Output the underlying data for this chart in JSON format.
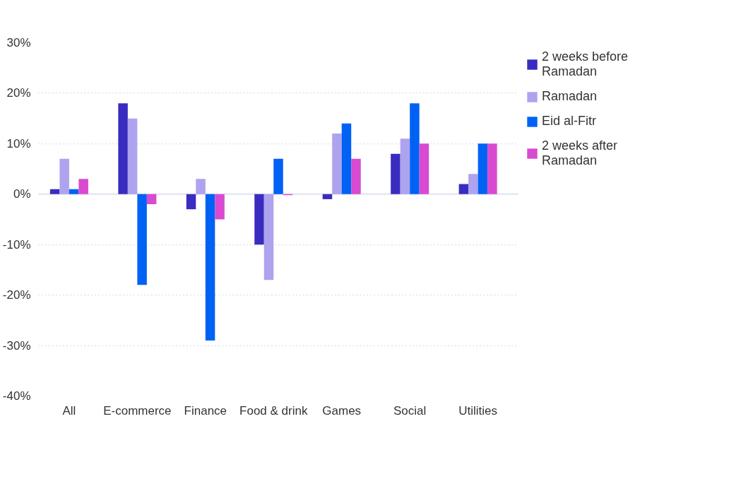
{
  "chart_data": {
    "type": "bar",
    "categories": [
      "All",
      "E-commerce",
      "Finance",
      "Food & drink",
      "Games",
      "Social",
      "Utilities"
    ],
    "series": [
      {
        "name": "2 weeks before Ramadan",
        "color": "#3a2cc0",
        "values": [
          1,
          18,
          -3,
          -10,
          -1,
          8,
          2
        ]
      },
      {
        "name": "Ramadan",
        "color": "#ada3ee",
        "values": [
          7,
          15,
          3,
          -17,
          12,
          11,
          4
        ]
      },
      {
        "name": "Eid al-Fitr",
        "color": "#0062f5",
        "values": [
          1,
          -18,
          -29,
          7,
          14,
          18,
          10
        ]
      },
      {
        "name": "2 weeks after Ramadan",
        "color": "#d84ad0",
        "values": [
          3,
          -2,
          -5,
          -0.2,
          7,
          10,
          10
        ]
      }
    ],
    "ylim": [
      -40,
      30
    ],
    "yticks": [
      {
        "value": -40,
        "label": "-40%"
      },
      {
        "value": -30,
        "label": "-30%"
      },
      {
        "value": -20,
        "label": "-20%"
      },
      {
        "value": -10,
        "label": "-10%"
      },
      {
        "value": 0,
        "label": "0%"
      },
      {
        "value": 10,
        "label": "10%"
      },
      {
        "value": 20,
        "label": "20%"
      },
      {
        "value": 30,
        "label": "30%"
      }
    ],
    "ref_lines": [
      {
        "axis": "y",
        "value": 0,
        "color": "#e2e4f0"
      }
    ],
    "grid": "y",
    "legend": "right"
  }
}
